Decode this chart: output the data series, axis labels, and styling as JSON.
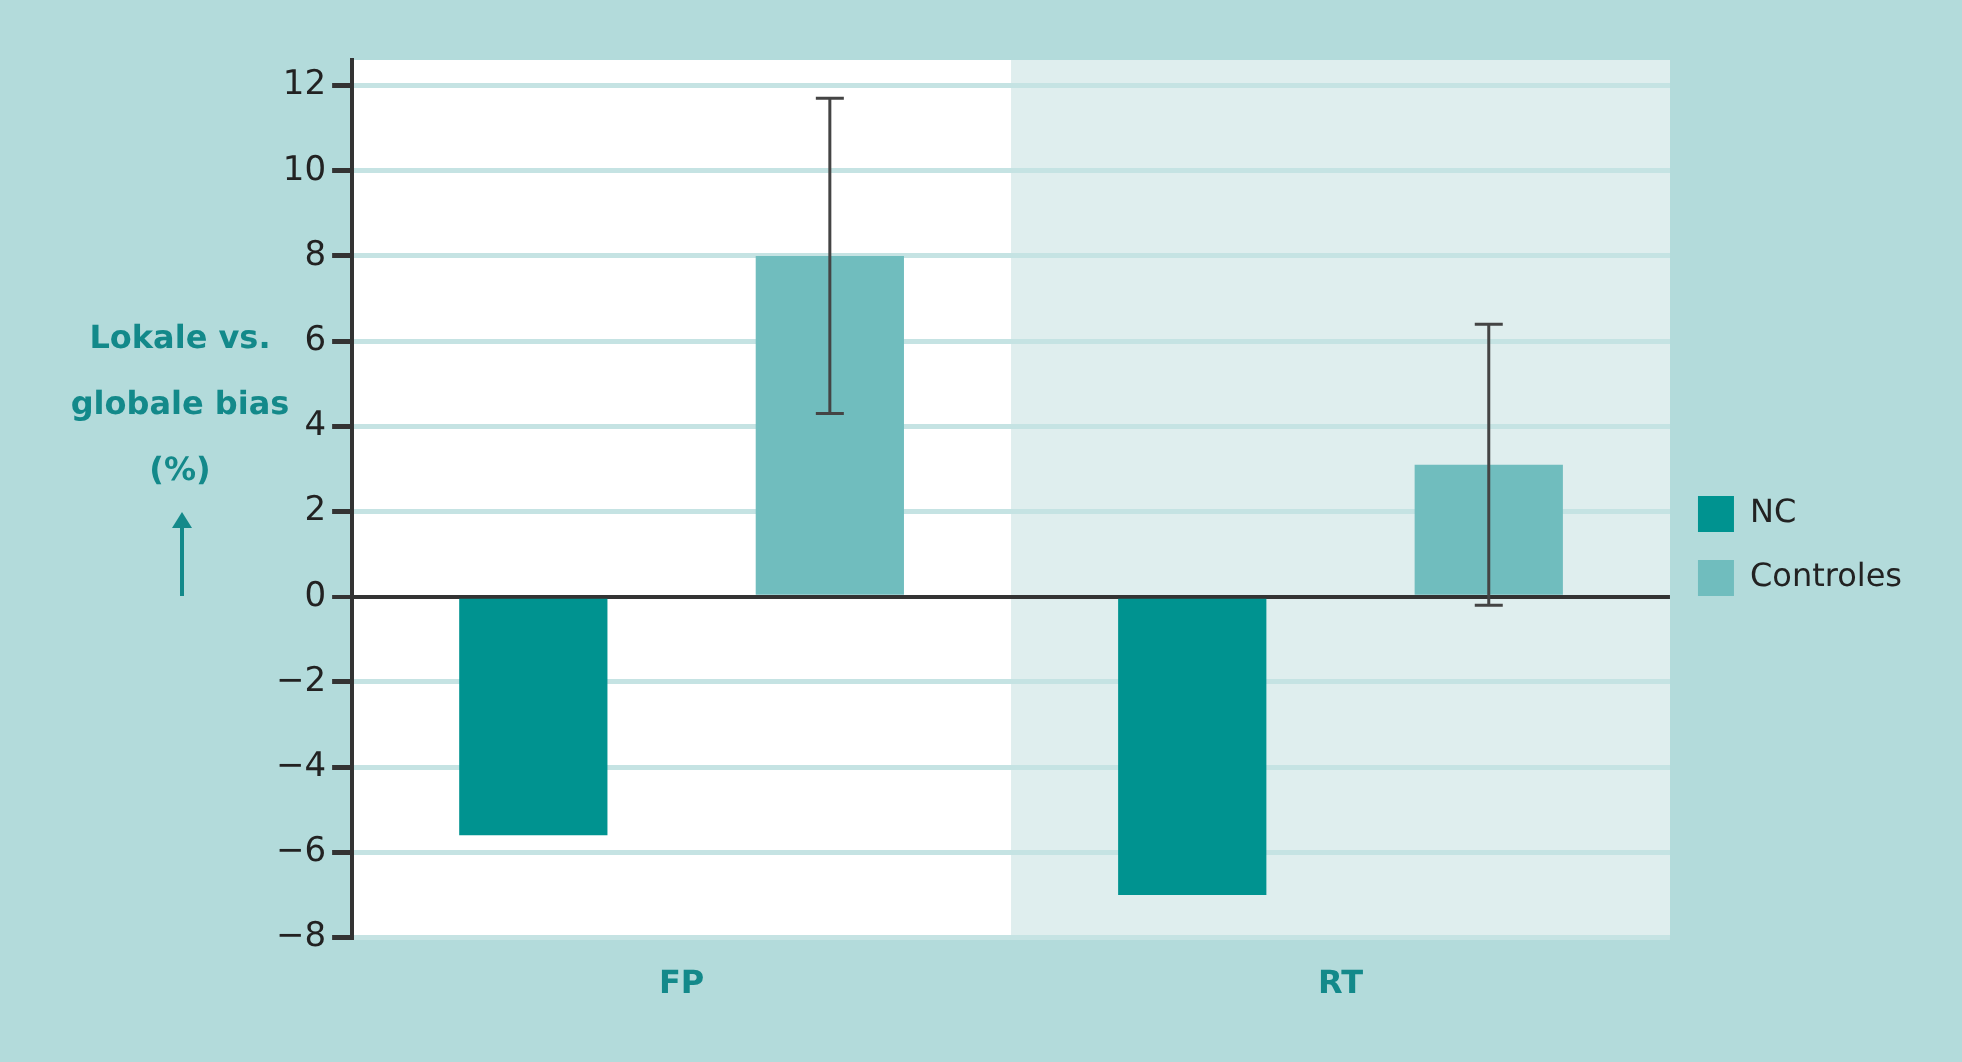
{
  "chart_data": {
    "type": "bar",
    "ylabel": "Lokale vs. globale bias (%)",
    "categories": [
      "FP",
      "RT"
    ],
    "series": [
      {
        "name": "NC",
        "color": "#009390",
        "values": [
          -5.6,
          -7.0
        ]
      },
      {
        "name": "Controles",
        "color": "#70bdbe",
        "values": [
          8.0,
          3.1
        ],
        "errors": [
          [
            4.3,
            11.7
          ],
          [
            -0.2,
            6.4
          ]
        ]
      }
    ],
    "ylim": [
      -8,
      12.6
    ],
    "yticks": [
      -8,
      -6,
      -4,
      -2,
      0,
      2,
      4,
      6,
      8,
      10,
      12
    ],
    "grid": "y",
    "legend": "right",
    "bands": [
      {
        "axis": "x",
        "from": "RT",
        "to": "RT",
        "color": "#dfeeee"
      }
    ]
  }
}
